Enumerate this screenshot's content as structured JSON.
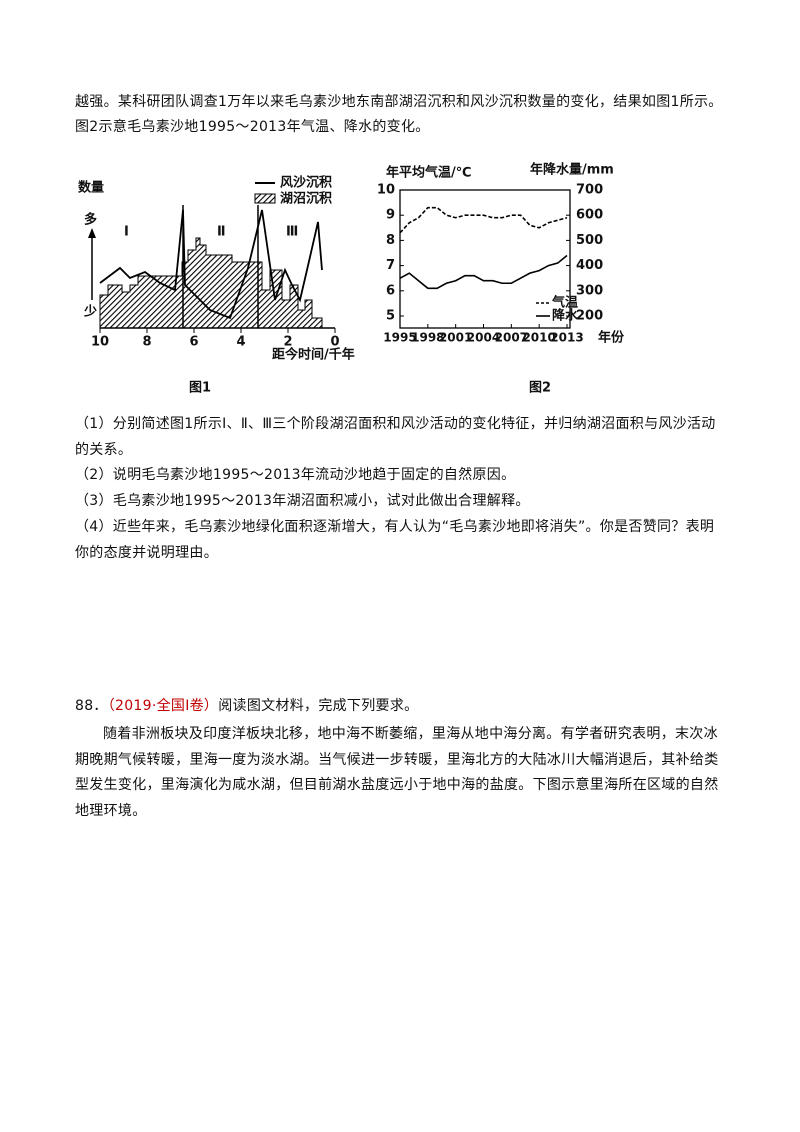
{
  "intro": [
    "越强。某科研团队调查1万年以来毛乌素沙地东南部湖沼沉积和风沙沉积数量的变化，结果如图1所示。",
    "图2示意毛乌素沙地1995～2013年气温、降水的变化。"
  ],
  "figure1": {
    "y_label": "数量",
    "more": "多",
    "less": "少",
    "legend": [
      "风沙沉积",
      "湖沼沉积"
    ],
    "stages": [
      "Ⅰ",
      "Ⅱ",
      "Ⅲ"
    ],
    "xlim": [
      10,
      0
    ],
    "xticks": [
      10,
      8,
      6,
      4,
      2,
      0
    ],
    "x_label": "距今时间/千年",
    "caption": "图1"
  },
  "figure2": {
    "type": "line",
    "x": [
      1995,
      1996,
      1997,
      1998,
      1999,
      2000,
      2001,
      2002,
      2003,
      2004,
      2005,
      2006,
      2007,
      2008,
      2009,
      2010,
      2011,
      2012,
      2013
    ],
    "xlim": [
      1995,
      2013
    ],
    "xticks": [
      1995,
      1998,
      2001,
      2004,
      2007,
      2010,
      2013
    ],
    "x_label": "年份",
    "ylim": [
      5,
      10
    ],
    "yticks": [
      5,
      6,
      7,
      8,
      9,
      10
    ],
    "y_label": "年平均气温/℃",
    "y2lim": [
      200,
      700
    ],
    "y2ticks": [
      200,
      300,
      400,
      500,
      600,
      700
    ],
    "y2_label": "年降水量/mm",
    "series": [
      {
        "name": "气温",
        "color": "#000000",
        "dashed": true,
        "values": [
          8.3,
          8.7,
          8.9,
          9.3,
          9.3,
          9.0,
          8.9,
          9.0,
          9.0,
          9.0,
          8.9,
          8.9,
          9.0,
          9.0,
          8.6,
          8.5,
          8.7,
          8.8,
          8.9
        ]
      },
      {
        "name": "降水",
        "color": "#000000",
        "dashed": false,
        "axis": "y2",
        "values": [
          350,
          370,
          340,
          310,
          310,
          330,
          340,
          360,
          360,
          340,
          340,
          330,
          330,
          350,
          370,
          380,
          400,
          410,
          440
        ]
      }
    ],
    "caption": "图2"
  },
  "questions": [
    "（1）分别简述图1所示Ⅰ、Ⅱ、Ⅲ三个阶段湖沼面积和风沙活动的变化特征，并归纳湖沼面积与风沙活动的关系。",
    "（2）说明毛乌素沙地1995～2013年流动沙地趋于固定的自然原因。",
    "（3）毛乌素沙地1995～2013年湖沼面积减小，试对此做出合理解释。",
    "（4）近些年来，毛乌素沙地绿化面积逐渐增大，有人认为“毛乌素沙地即将消失”。你是否赞同？表明你的态度并说明理由。"
  ],
  "q88": {
    "number": "88．",
    "source": "（2019·全国Ⅰ卷）",
    "prompt": "阅读图文材料，完成下列要求。",
    "material": "随着非洲板块及印度洋板块北移，地中海不断萎缩，里海从地中海分离。有学者研究表明，末次冰期晚期气候转暖，里海一度为淡水湖。当气候进一步转暖，里海北方的大陆冰川大幅消退后，其补给类型发生变化，里海演化为咸水湖，但目前湖水盐度远小于地中海的盐度。下图示意里海所在区域的自然地理环境。"
  }
}
